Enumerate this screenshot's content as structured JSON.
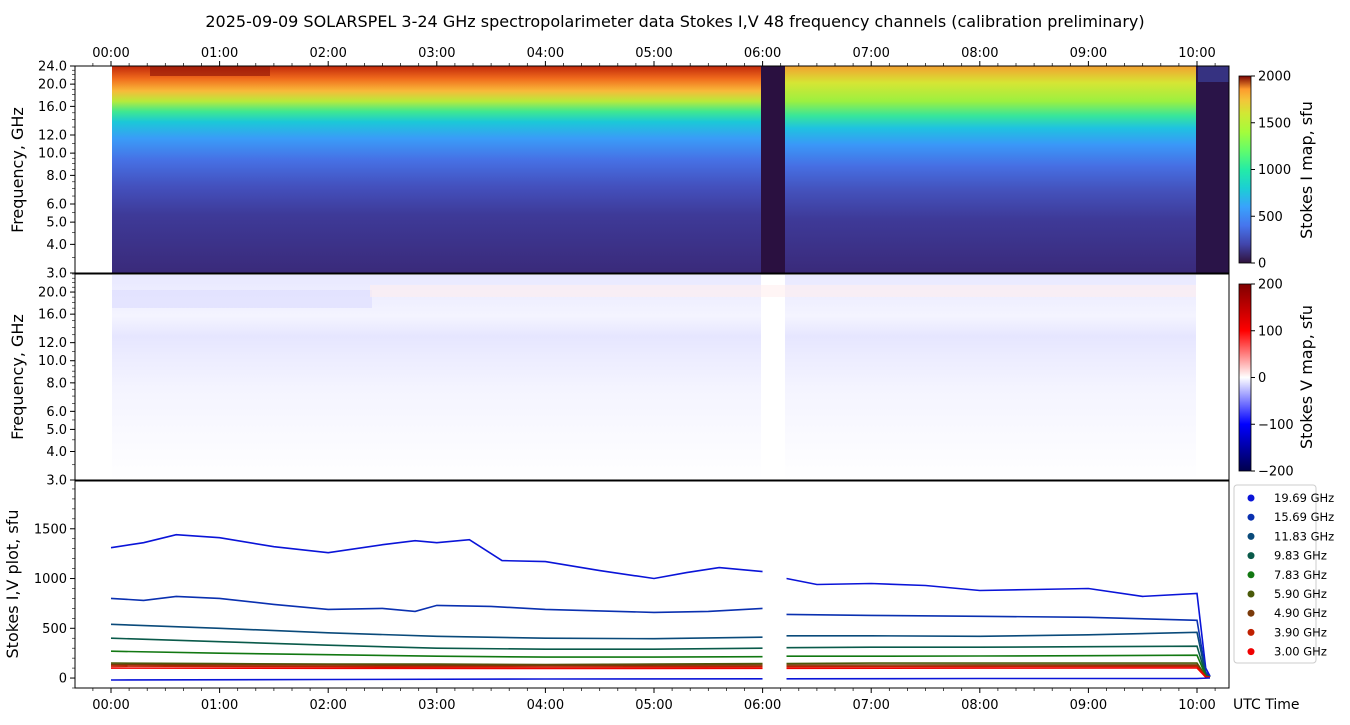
{
  "title": "2025-09-09  SOLARSPEL  3-24 GHz spectropolarimeter data   Stokes I,V   48 frequency channels   (calibration preliminary)",
  "time_ticks": [
    "00:00",
    "01:00",
    "02:00",
    "03:00",
    "04:00",
    "05:00",
    "06:00",
    "07:00",
    "08:00",
    "09:00",
    "10:00"
  ],
  "time_axis_label": "UTC Time",
  "freq_ticks": [
    "3.0",
    "4.0",
    "5.0",
    "6.0",
    "8.0",
    "10.0",
    "12.0",
    "16.0",
    "20.0",
    "24.0"
  ],
  "freq_ticks_v": [
    "3.0",
    "4.0",
    "5.0",
    "6.0",
    "8.0",
    "10.0",
    "12.0",
    "16.0",
    "20.0"
  ],
  "panel_i": {
    "ylabel": "Frequency, GHz",
    "colorbar_label": "Stokes I map, sfu",
    "colorbar_ticks": [
      "0",
      "500",
      "1000",
      "1500",
      "2000"
    ],
    "colormap": "turbo"
  },
  "panel_v": {
    "ylabel": "Frequency, GHz",
    "colorbar_label": "Stokes V map, sfu",
    "colorbar_ticks": [
      "−200",
      "−100",
      "0",
      "100",
      "200"
    ],
    "colormap": "seismic"
  },
  "panel_plot": {
    "ylabel": "Stokes I,V plot, sfu",
    "yticks": [
      "0",
      "500",
      "1000",
      "1500"
    ]
  },
  "legend": [
    {
      "label": "19.69 GHz",
      "color": "#0a14d8"
    },
    {
      "label": "15.69 GHz",
      "color": "#0a30b0"
    },
    {
      "label": "11.83 GHz",
      "color": "#0a4a7a"
    },
    {
      "label": "9.83 GHz",
      "color": "#0a5a4a"
    },
    {
      "label": "7.83 GHz",
      "color": "#127812"
    },
    {
      "label": "5.90 GHz",
      "color": "#4a5a0a"
    },
    {
      "label": "4.90 GHz",
      "color": "#7a3a0a"
    },
    {
      "label": "3.90 GHz",
      "color": "#c02000"
    },
    {
      "label": "3.00 GHz",
      "color": "#f00000"
    }
  ],
  "chart_data": {
    "type": "line",
    "x_unit": "UTC hours",
    "xlim": [
      -0.3,
      10.32
    ],
    "ylim": [
      -100,
      1980
    ],
    "data_gap": [
      6.0,
      6.22
    ],
    "series": [
      {
        "name": "19.69 GHz",
        "color": "#0a14d8",
        "x": [
          0,
          0.3,
          0.6,
          1.0,
          1.5,
          2.0,
          2.5,
          2.8,
          3.0,
          3.3,
          3.6,
          4.0,
          4.5,
          5.0,
          5.3,
          5.6,
          6.0,
          6.22,
          6.5,
          7.0,
          7.5,
          8.0,
          8.5,
          9.0,
          9.5,
          10.0,
          10.08,
          10.12
        ],
        "y": [
          1310,
          1360,
          1440,
          1410,
          1320,
          1260,
          1340,
          1380,
          1360,
          1390,
          1180,
          1170,
          1080,
          1000,
          1060,
          1110,
          1070,
          1000,
          940,
          950,
          930,
          880,
          890,
          900,
          820,
          850,
          100,
          20
        ]
      },
      {
        "name": "15.69 GHz",
        "color": "#0a30b0",
        "x": [
          0,
          0.3,
          0.6,
          1.0,
          1.5,
          2.0,
          2.5,
          2.8,
          3.0,
          3.5,
          4.0,
          5.0,
          5.5,
          6.0,
          6.22,
          7.0,
          8.0,
          9.0,
          10.0,
          10.08,
          10.12
        ],
        "y": [
          800,
          780,
          820,
          800,
          740,
          690,
          700,
          670,
          730,
          720,
          690,
          660,
          670,
          700,
          640,
          630,
          620,
          610,
          580,
          60,
          10
        ]
      },
      {
        "name": "11.83 GHz",
        "color": "#0a4a7a",
        "x": [
          0,
          1,
          2,
          3,
          4,
          5,
          6,
          6.22,
          7,
          8,
          9,
          10,
          10.08,
          10.12
        ],
        "y": [
          540,
          500,
          455,
          420,
          400,
          395,
          410,
          425,
          425,
          420,
          435,
          460,
          40,
          10
        ]
      },
      {
        "name": "9.83 GHz",
        "color": "#0a5a4a",
        "x": [
          0,
          1,
          2,
          3,
          4,
          5,
          6,
          6.22,
          7,
          8,
          9,
          10,
          10.08,
          10.12
        ],
        "y": [
          400,
          365,
          330,
          300,
          290,
          290,
          300,
          305,
          310,
          310,
          315,
          320,
          30,
          10
        ]
      },
      {
        "name": "7.83 GHz",
        "color": "#127812",
        "x": [
          0,
          1,
          2,
          3,
          4,
          5,
          6,
          6.22,
          7,
          8,
          9,
          10,
          10.08,
          10.12
        ],
        "y": [
          270,
          250,
          235,
          220,
          210,
          210,
          215,
          220,
          220,
          222,
          225,
          230,
          25,
          10
        ]
      },
      {
        "name": "5.90 GHz",
        "color": "#4a5a0a",
        "x": [
          0,
          1,
          2,
          3,
          4,
          5,
          6,
          6.22,
          7,
          8,
          9,
          10,
          10.08,
          10.12
        ],
        "y": [
          150,
          145,
          140,
          140,
          135,
          140,
          145,
          145,
          150,
          150,
          150,
          150,
          20,
          10
        ]
      },
      {
        "name": "4.90 GHz",
        "color": "#7a3a0a",
        "x": [
          0,
          2,
          4,
          6,
          6.22,
          8,
          10,
          10.08,
          10.12
        ],
        "y": [
          135,
          130,
          128,
          130,
          130,
          132,
          132,
          15,
          10
        ]
      },
      {
        "name": "3.90 GHz",
        "color": "#c02000",
        "x": [
          0,
          2,
          4,
          6,
          6.22,
          8,
          10,
          10.08,
          10.12
        ],
        "y": [
          120,
          115,
          112,
          115,
          115,
          117,
          118,
          12,
          8
        ]
      },
      {
        "name": "3.00 GHz",
        "color": "#f00000",
        "x": [
          0,
          2,
          4,
          6,
          6.22,
          8,
          10,
          10.08,
          10.12
        ],
        "y": [
          100,
          98,
          96,
          98,
          98,
          100,
          102,
          10,
          6
        ]
      },
      {
        "name": "",
        "color": "#0a14d8",
        "x": [
          0,
          2,
          4,
          6,
          6.22,
          8,
          10,
          10.12
        ],
        "y": [
          -20,
          -15,
          -10,
          -8,
          -8,
          -5,
          -5,
          0
        ]
      }
    ]
  }
}
